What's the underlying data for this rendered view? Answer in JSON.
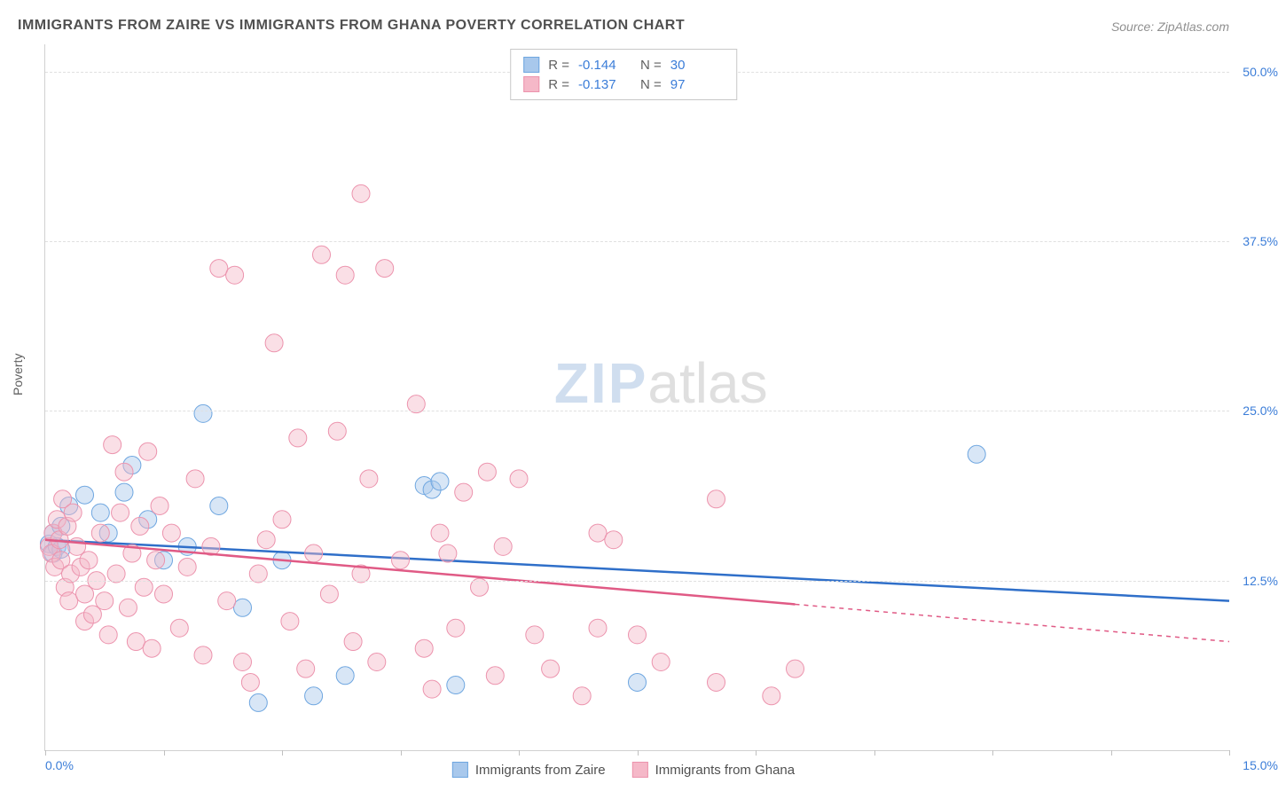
{
  "title": "IMMIGRANTS FROM ZAIRE VS IMMIGRANTS FROM GHANA POVERTY CORRELATION CHART",
  "source": "Source: ZipAtlas.com",
  "ylabel": "Poverty",
  "watermark_zip": "ZIP",
  "watermark_atlas": "atlas",
  "chart": {
    "type": "scatter",
    "xlim": [
      0,
      15
    ],
    "ylim": [
      0,
      52
    ],
    "x_tick_positions": [
      0,
      1.5,
      3,
      4.5,
      6,
      7.5,
      9,
      10.5,
      12,
      13.5,
      15
    ],
    "x_tick_labels_shown": {
      "0": "0.0%",
      "15": "15.0%"
    },
    "y_gridlines": [
      12.5,
      25.0,
      37.5,
      50.0
    ],
    "y_tick_labels": [
      "12.5%",
      "25.0%",
      "37.5%",
      "50.0%"
    ],
    "background_color": "#ffffff",
    "grid_color": "#e0e0e0",
    "axis_color": "#d0d0d0",
    "tick_label_color": "#3b7dd8",
    "axis_label_color": "#606060",
    "marker_radius": 10,
    "marker_opacity": 0.45,
    "line_width": 2.5,
    "series": [
      {
        "name": "Immigrants from Zaire",
        "color_fill": "#a8c8ec",
        "color_stroke": "#6ea6e0",
        "line_color": "#2f6fc9",
        "R": "-0.144",
        "N": "30",
        "trend": {
          "x1": 0,
          "y1": 15.5,
          "x2": 15,
          "y2": 11.0,
          "solid_end_x": 15
        },
        "points": [
          [
            0.05,
            15.2
          ],
          [
            0.1,
            16.0
          ],
          [
            0.1,
            14.5
          ],
          [
            0.15,
            15.0
          ],
          [
            0.2,
            16.5
          ],
          [
            0.2,
            14.8
          ],
          [
            0.3,
            18.0
          ],
          [
            0.5,
            18.8
          ],
          [
            0.7,
            17.5
          ],
          [
            0.8,
            16.0
          ],
          [
            1.0,
            19.0
          ],
          [
            1.1,
            21.0
          ],
          [
            1.3,
            17.0
          ],
          [
            1.5,
            14.0
          ],
          [
            1.8,
            15.0
          ],
          [
            2.0,
            24.8
          ],
          [
            2.2,
            18.0
          ],
          [
            2.5,
            10.5
          ],
          [
            2.7,
            3.5
          ],
          [
            3.0,
            14.0
          ],
          [
            3.4,
            4.0
          ],
          [
            3.8,
            5.5
          ],
          [
            4.8,
            19.5
          ],
          [
            4.9,
            19.2
          ],
          [
            5.0,
            19.8
          ],
          [
            5.2,
            4.8
          ],
          [
            7.5,
            5.0
          ],
          [
            11.8,
            21.8
          ]
        ]
      },
      {
        "name": "Immigrants from Ghana",
        "color_fill": "#f5b8c8",
        "color_stroke": "#ec93ad",
        "line_color": "#e05a85",
        "R": "-0.137",
        "N": "97",
        "trend": {
          "x1": 0,
          "y1": 15.5,
          "x2": 15,
          "y2": 8.0,
          "solid_end_x": 9.5
        },
        "points": [
          [
            0.05,
            15.0
          ],
          [
            0.08,
            14.5
          ],
          [
            0.1,
            16.0
          ],
          [
            0.12,
            13.5
          ],
          [
            0.15,
            17.0
          ],
          [
            0.18,
            15.5
          ],
          [
            0.2,
            14.0
          ],
          [
            0.22,
            18.5
          ],
          [
            0.25,
            12.0
          ],
          [
            0.28,
            16.5
          ],
          [
            0.3,
            11.0
          ],
          [
            0.32,
            13.0
          ],
          [
            0.35,
            17.5
          ],
          [
            0.4,
            15.0
          ],
          [
            0.45,
            13.5
          ],
          [
            0.5,
            9.5
          ],
          [
            0.5,
            11.5
          ],
          [
            0.55,
            14.0
          ],
          [
            0.6,
            10.0
          ],
          [
            0.65,
            12.5
          ],
          [
            0.7,
            16.0
          ],
          [
            0.75,
            11.0
          ],
          [
            0.8,
            8.5
          ],
          [
            0.85,
            22.5
          ],
          [
            0.9,
            13.0
          ],
          [
            0.95,
            17.5
          ],
          [
            1.0,
            20.5
          ],
          [
            1.05,
            10.5
          ],
          [
            1.1,
            14.5
          ],
          [
            1.15,
            8.0
          ],
          [
            1.2,
            16.5
          ],
          [
            1.25,
            12.0
          ],
          [
            1.3,
            22.0
          ],
          [
            1.35,
            7.5
          ],
          [
            1.4,
            14.0
          ],
          [
            1.45,
            18.0
          ],
          [
            1.5,
            11.5
          ],
          [
            1.6,
            16.0
          ],
          [
            1.7,
            9.0
          ],
          [
            1.8,
            13.5
          ],
          [
            1.9,
            20.0
          ],
          [
            2.0,
            7.0
          ],
          [
            2.1,
            15.0
          ],
          [
            2.2,
            35.5
          ],
          [
            2.3,
            11.0
          ],
          [
            2.4,
            35.0
          ],
          [
            2.5,
            6.5
          ],
          [
            2.6,
            5.0
          ],
          [
            2.7,
            13.0
          ],
          [
            2.8,
            15.5
          ],
          [
            2.9,
            30.0
          ],
          [
            3.0,
            17.0
          ],
          [
            3.1,
            9.5
          ],
          [
            3.2,
            23.0
          ],
          [
            3.3,
            6.0
          ],
          [
            3.4,
            14.5
          ],
          [
            3.5,
            36.5
          ],
          [
            3.6,
            11.5
          ],
          [
            3.7,
            23.5
          ],
          [
            3.8,
            35.0
          ],
          [
            3.9,
            8.0
          ],
          [
            4.0,
            41.0
          ],
          [
            4.0,
            13.0
          ],
          [
            4.1,
            20.0
          ],
          [
            4.2,
            6.5
          ],
          [
            4.3,
            35.5
          ],
          [
            4.5,
            14.0
          ],
          [
            4.7,
            25.5
          ],
          [
            4.8,
            7.5
          ],
          [
            4.9,
            4.5
          ],
          [
            5.0,
            16.0
          ],
          [
            5.1,
            14.5
          ],
          [
            5.2,
            9.0
          ],
          [
            5.3,
            19.0
          ],
          [
            5.5,
            12.0
          ],
          [
            5.6,
            20.5
          ],
          [
            5.7,
            5.5
          ],
          [
            5.8,
            15.0
          ],
          [
            6.0,
            20.0
          ],
          [
            6.2,
            8.5
          ],
          [
            6.4,
            6.0
          ],
          [
            6.8,
            4.0
          ],
          [
            7.0,
            9.0
          ],
          [
            7.0,
            16.0
          ],
          [
            7.2,
            15.5
          ],
          [
            7.5,
            8.5
          ],
          [
            7.8,
            6.5
          ],
          [
            8.5,
            18.5
          ],
          [
            8.5,
            5.0
          ],
          [
            9.2,
            4.0
          ],
          [
            9.5,
            6.0
          ]
        ]
      }
    ]
  },
  "legend": {
    "items": [
      {
        "label": "Immigrants from Zaire",
        "fill": "#a8c8ec",
        "stroke": "#6ea6e0"
      },
      {
        "label": "Immigrants from Ghana",
        "fill": "#f5b8c8",
        "stroke": "#ec93ad"
      }
    ]
  }
}
